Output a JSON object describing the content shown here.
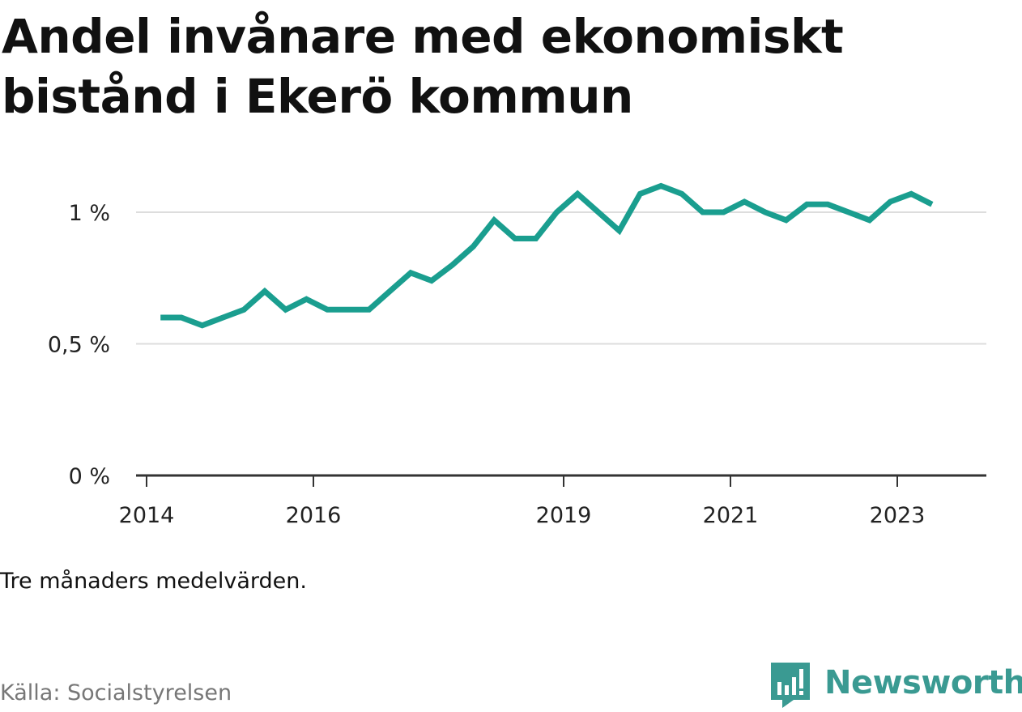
{
  "title": "Andel invånare med ekonomiskt bistånd i Ekerö kommun",
  "note": "Tre månaders medelvärden.",
  "source": "Källa: Socialstyrelsen",
  "brand": {
    "name": "Newsworthy",
    "icon": "newsworthy-logo-icon",
    "color": "#3a9a92"
  },
  "colors": {
    "line": "#1a9e8f",
    "grid": "#dddddd",
    "axis": "#333333",
    "text": "#222222"
  },
  "chart_data": {
    "type": "line",
    "title": "Andel invånare med ekonomiskt bistånd i Ekerö kommun",
    "xlabel": "",
    "ylabel": "",
    "x_ticks": [
      {
        "year": 2014,
        "label": "2014"
      },
      {
        "year": 2016,
        "label": "2016"
      },
      {
        "year": 2019,
        "label": "2019"
      },
      {
        "year": 2021,
        "label": "2021"
      },
      {
        "year": 2023,
        "label": "2023"
      }
    ],
    "y_ticks": [
      {
        "value": 0,
        "label": "0 %"
      },
      {
        "value": 0.5,
        "label": "0,5 %"
      },
      {
        "value": 1,
        "label": "1 %"
      }
    ],
    "ylim": [
      0,
      1.2
    ],
    "xlim": [
      "2013-11",
      "2024-01"
    ],
    "grid": true,
    "legend": "none",
    "series": [
      {
        "values": [
          {
            "date": "2014-03",
            "value": 0.6
          },
          {
            "date": "2014-06",
            "value": 0.6
          },
          {
            "date": "2014-09",
            "value": 0.57
          },
          {
            "date": "2014-12",
            "value": 0.6
          },
          {
            "date": "2015-03",
            "value": 0.63
          },
          {
            "date": "2015-06",
            "value": 0.7
          },
          {
            "date": "2015-09",
            "value": 0.63
          },
          {
            "date": "2015-12",
            "value": 0.67
          },
          {
            "date": "2016-03",
            "value": 0.63
          },
          {
            "date": "2016-06",
            "value": 0.63
          },
          {
            "date": "2016-09",
            "value": 0.63
          },
          {
            "date": "2016-12",
            "value": 0.7
          },
          {
            "date": "2017-03",
            "value": 0.77
          },
          {
            "date": "2017-06",
            "value": 0.74
          },
          {
            "date": "2017-09",
            "value": 0.8
          },
          {
            "date": "2017-12",
            "value": 0.87
          },
          {
            "date": "2018-03",
            "value": 0.97
          },
          {
            "date": "2018-06",
            "value": 0.9
          },
          {
            "date": "2018-09",
            "value": 0.9
          },
          {
            "date": "2018-12",
            "value": 1.0
          },
          {
            "date": "2019-03",
            "value": 1.07
          },
          {
            "date": "2019-06",
            "value": 1.0
          },
          {
            "date": "2019-09",
            "value": 0.93
          },
          {
            "date": "2019-12",
            "value": 1.07
          },
          {
            "date": "2020-03",
            "value": 1.1
          },
          {
            "date": "2020-06",
            "value": 1.07
          },
          {
            "date": "2020-09",
            "value": 1.0
          },
          {
            "date": "2020-12",
            "value": 1.0
          },
          {
            "date": "2021-03",
            "value": 1.04
          },
          {
            "date": "2021-06",
            "value": 1.0
          },
          {
            "date": "2021-09",
            "value": 0.97
          },
          {
            "date": "2021-12",
            "value": 1.03
          },
          {
            "date": "2022-03",
            "value": 1.03
          },
          {
            "date": "2022-06",
            "value": 1.0
          },
          {
            "date": "2022-09",
            "value": 0.97
          },
          {
            "date": "2022-12",
            "value": 1.04
          },
          {
            "date": "2023-03",
            "value": 1.07
          },
          {
            "date": "2023-06",
            "value": 1.03
          }
        ]
      }
    ]
  }
}
